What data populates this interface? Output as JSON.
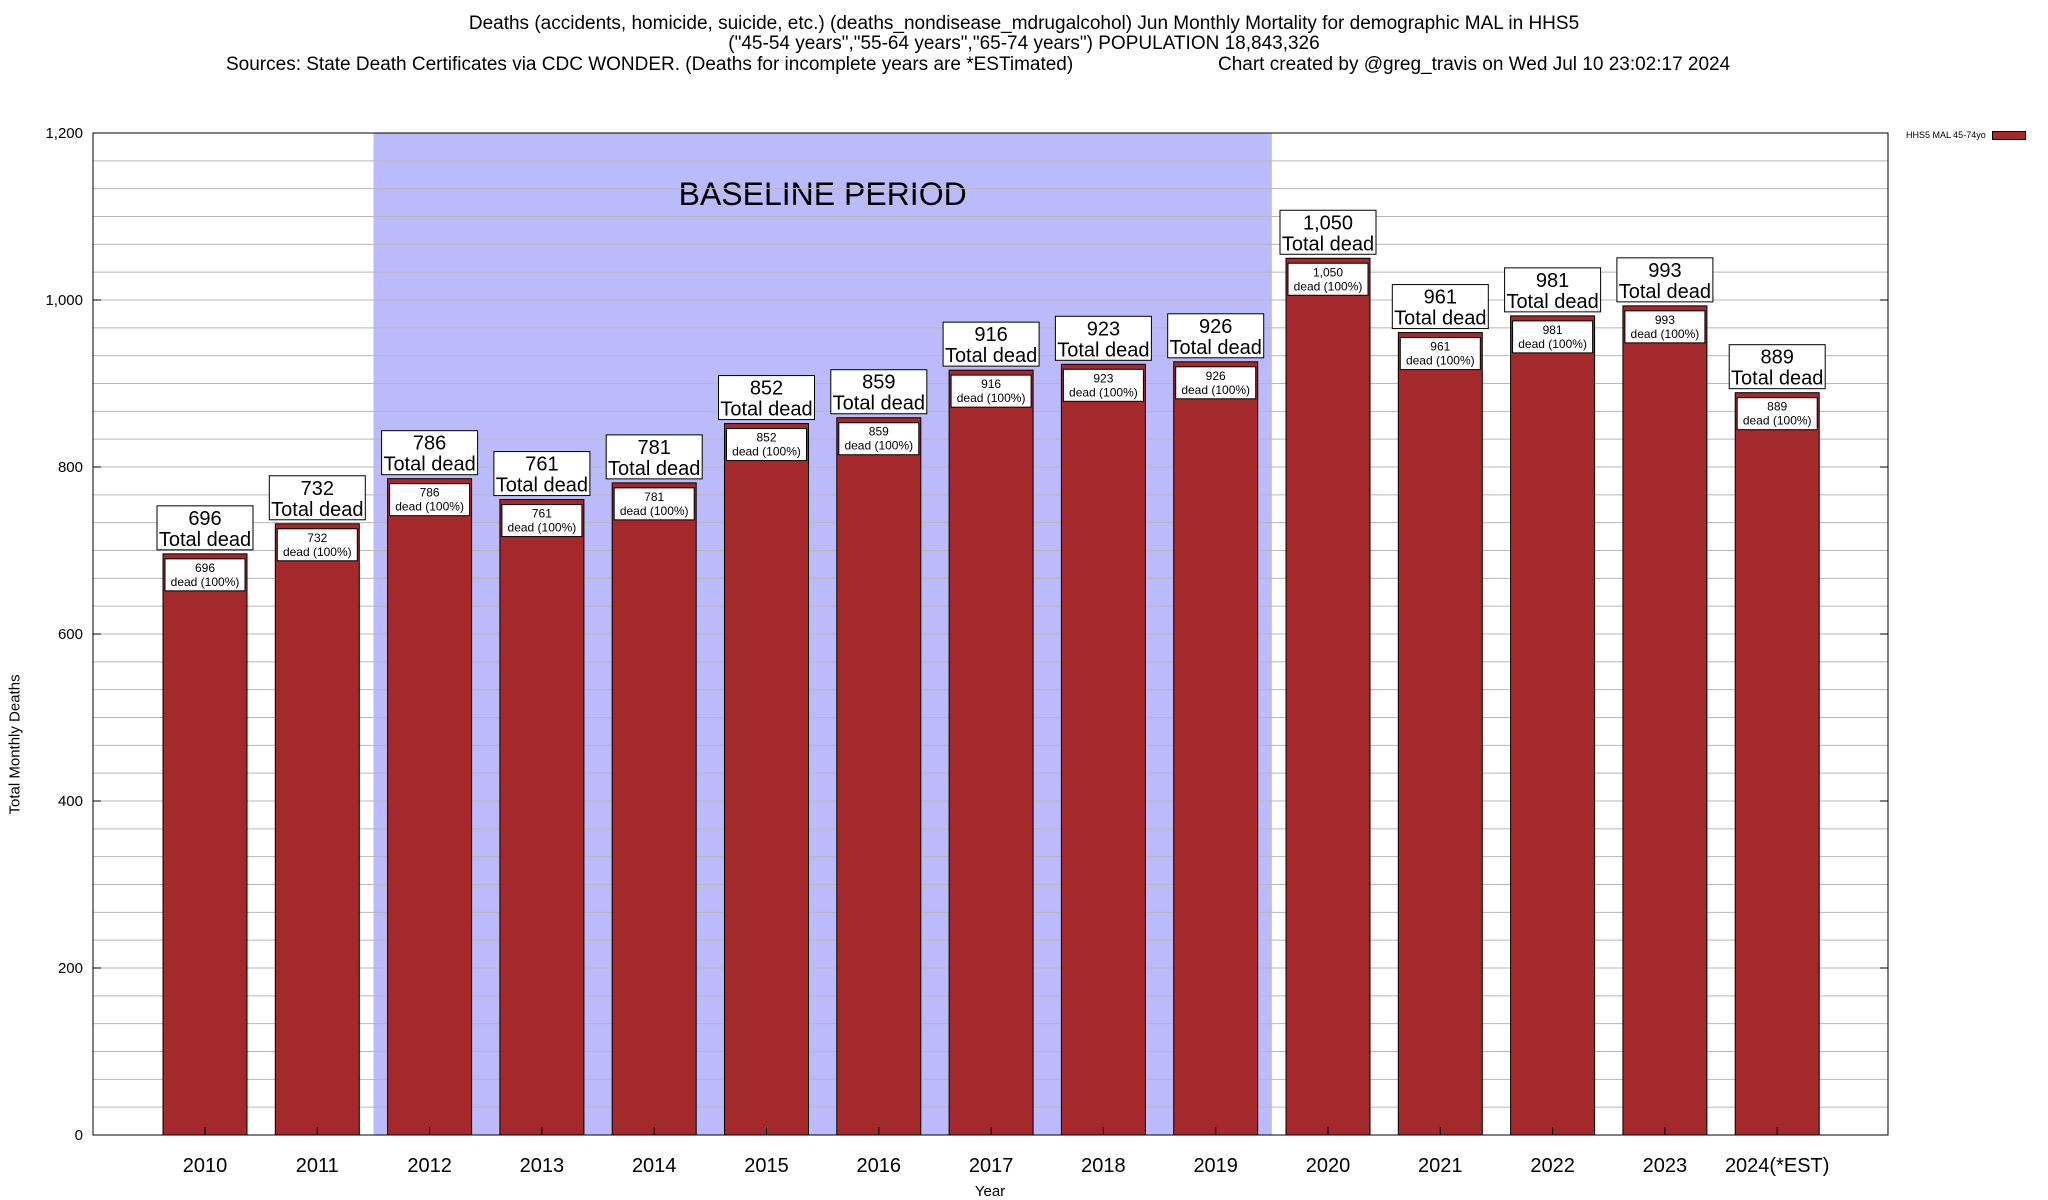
{
  "title": {
    "line1": "Deaths (accidents, homicide, suicide, etc.) (deaths_nondisease_mdrugalcohol) Jun Monthly Mortality for demographic MAL in HHS5",
    "line2": "(\"45-54 years\",\"55-64 years\",\"65-74 years\") POPULATION 18,843,326",
    "sources": "Sources: State Death Certificates via CDC WONDER. (Deaths for incomplete years are *ESTimated)",
    "credit": "Chart created by @greg_travis on Wed Jul 10 23:02:17 2024"
  },
  "colors": {
    "bar": "#a4292b",
    "baseline": "#bbbbfb",
    "grid": "#b8b8b8"
  },
  "chart_data": {
    "type": "bar",
    "xlabel": "Year",
    "ylabel": "Total Monthly Deaths",
    "ylim": [
      0,
      1200
    ],
    "yticks": [
      0,
      200,
      400,
      600,
      800,
      1000,
      1200
    ],
    "ytick_labels": [
      "0",
      "200",
      "400",
      "600",
      "800",
      "1,000",
      "1,200"
    ],
    "grid": true,
    "legend": {
      "placement": "top-right",
      "entry": "HHS5 MAL 45-74yo"
    },
    "categories": [
      "2010",
      "2011",
      "2012",
      "2013",
      "2014",
      "2015",
      "2016",
      "2017",
      "2018",
      "2019",
      "2020",
      "2021",
      "2022",
      "2023",
      "2024(*EST)"
    ],
    "series": [
      {
        "name": "HHS5 MAL 45-74yo",
        "values": [
          696,
          732,
          786,
          761,
          781,
          852,
          859,
          916,
          923,
          926,
          1050,
          961,
          981,
          993,
          889
        ],
        "value_labels": [
          "696",
          "732",
          "786",
          "761",
          "781",
          "852",
          "859",
          "916",
          "923",
          "926",
          "1,050",
          "961",
          "981",
          "993",
          "889"
        ]
      }
    ],
    "total_label": "Total dead",
    "inner_label_suffix": "dead (100%)",
    "baseline_period": {
      "label": "BASELINE PERIOD",
      "from": "2012",
      "to": "2019"
    }
  }
}
